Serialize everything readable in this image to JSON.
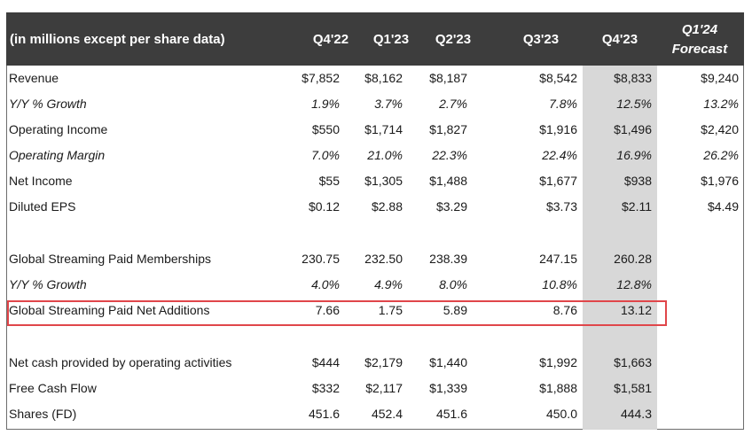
{
  "header": {
    "label": "(in millions except per share data)",
    "columns": [
      "Q4'22",
      "Q1'23",
      "Q2'23",
      "Q3'23",
      "Q4'23"
    ],
    "forecast": {
      "line1": "Q1'24",
      "line2": "Forecast"
    }
  },
  "rows": [
    {
      "label": "Revenue",
      "values": [
        "$7,852",
        "$8,162",
        "$8,187",
        "$8,542",
        "$8,833"
      ],
      "forecast": "$9,240"
    },
    {
      "label": "Y/Y % Growth",
      "values": [
        "1.9%",
        "3.7%",
        "2.7%",
        "7.8%",
        "12.5%"
      ],
      "forecast": "13.2%"
    },
    {
      "label": "Operating Income",
      "values": [
        "$550",
        "$1,714",
        "$1,827",
        "$1,916",
        "$1,496"
      ],
      "forecast": "$2,420"
    },
    {
      "label": "Operating Margin",
      "values": [
        "7.0%",
        "21.0%",
        "22.3%",
        "22.4%",
        "16.9%"
      ],
      "forecast": "26.2%"
    },
    {
      "label": "Net Income",
      "values": [
        "$55",
        "$1,305",
        "$1,488",
        "$1,677",
        "$938"
      ],
      "forecast": "$1,976"
    },
    {
      "label": "Diluted EPS",
      "values": [
        "$0.12",
        "$2.88",
        "$3.29",
        "$3.73",
        "$2.11"
      ],
      "forecast": "$4.49"
    },
    {
      "label": "Global Streaming Paid Memberships",
      "values": [
        "230.75",
        "232.50",
        "238.39",
        "247.15",
        "260.28"
      ],
      "forecast": ""
    },
    {
      "label": "Y/Y % Growth",
      "values": [
        "4.0%",
        "4.9%",
        "8.0%",
        "10.8%",
        "12.8%"
      ],
      "forecast": ""
    },
    {
      "label": "Global Streaming Paid Net Additions",
      "values": [
        "7.66",
        "1.75",
        "5.89",
        "8.76",
        "13.12"
      ],
      "forecast": ""
    },
    {
      "label": "Net cash provided by operating activities",
      "values": [
        "$444",
        "$2,179",
        "$1,440",
        "$1,992",
        "$1,663"
      ],
      "forecast": ""
    },
    {
      "label": "Free Cash Flow",
      "values": [
        "$332",
        "$2,117",
        "$1,339",
        "$1,888",
        "$1,581"
      ],
      "forecast": ""
    },
    {
      "label": "Shares (FD)",
      "values": [
        "451.6",
        "452.4",
        "451.6",
        "450.0",
        "444.3"
      ],
      "forecast": ""
    }
  ],
  "colors": {
    "header_bg": "#3d3d3d",
    "highlight_column": "#d8d8d8",
    "highlight_box": "#e0464a"
  }
}
